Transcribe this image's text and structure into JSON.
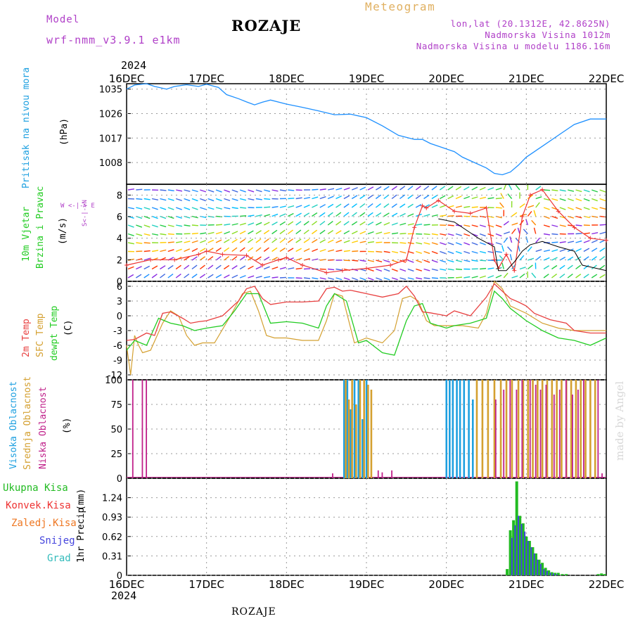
{
  "header": {
    "model_label": "Model",
    "model_name": "wrf-nmm_v3.9.1 e1km",
    "station": "ROZAJE",
    "product": "Meteogram",
    "coords": "lon,lat (20.1312E, 42.8625N)",
    "elevation": "Nadmorska Visina 1012m",
    "model_elevation": "Nadmorska Visina u modelu 1186.16m",
    "footer_station": "ROZAJE",
    "credit": "made by Angel",
    "year": "2024"
  },
  "colors": {
    "pressure": "#1e90ff",
    "t2m": "#e84040",
    "sfc": "#d4a030",
    "dew": "#22cc22",
    "high_cloud": "#1ea0e0",
    "mid_cloud": "#d4a030",
    "low_cloud": "#c0208a",
    "total_precip": "#22bb22",
    "conv_precip": "#ee3333",
    "frz_precip": "#ee7722",
    "snow": "#4444dd",
    "grad": "#33bbbb",
    "gust_line": "#ee3333",
    "wind_line": "#000000"
  },
  "x_axis": {
    "labels": [
      "16DEC",
      "17DEC",
      "18DEC",
      "19DEC",
      "20DEC",
      "21DEC",
      "22DEC"
    ],
    "days": 6
  },
  "chart_data": [
    {
      "type": "line",
      "id": "pressure",
      "ylabel_main": "Pritisak na nivou mora",
      "unit": "(hPa)",
      "yticks": [
        "1035",
        "1026",
        "1017",
        "1008"
      ],
      "ylim": [
        1000,
        1037
      ],
      "series": [
        {
          "x": [
            0,
            0.1,
            0.25,
            0.35,
            0.5,
            0.6,
            0.75,
            0.9,
            1.0,
            1.15,
            1.25,
            1.4,
            1.5,
            1.6,
            1.7,
            1.8,
            2.0,
            2.2,
            2.4,
            2.6,
            2.8,
            3.0,
            3.2,
            3.4,
            3.6,
            3.7,
            3.8,
            4.0,
            4.1,
            4.2,
            4.35,
            4.5,
            4.6,
            4.7,
            4.8,
            4.9,
            5.0,
            5.2,
            5.4,
            5.6,
            5.8,
            6.0
          ],
          "values": [
            1035,
            1036.5,
            1037,
            1036,
            1035,
            1036,
            1036.6,
            1036,
            1036.8,
            1035.6,
            1033,
            1031.5,
            1030.3,
            1029.2,
            1030.2,
            1031,
            1029.5,
            1028.3,
            1027,
            1025.6,
            1025.8,
            1024.5,
            1021.5,
            1018,
            1016.5,
            1016.5,
            1015,
            1013,
            1012,
            1010,
            1008,
            1006,
            1004,
            1003.5,
            1004.5,
            1007,
            1010,
            1014,
            1018,
            1022,
            1024,
            1024
          ]
        }
      ]
    },
    {
      "type": "scatter",
      "id": "wind",
      "ylabel_main": "10m Vjetar",
      "ylabel_sub": "Brzina i Pravac",
      "unit": "(m/s)",
      "compass": "W <-|-> E",
      "compass_ns": "S<-|->N",
      "yticks": [
        "8",
        "6",
        "4",
        "2",
        "0"
      ],
      "ylim": [
        0,
        9
      ],
      "series": [
        {
          "name": "gust",
          "x": [
            0,
            0.3,
            0.6,
            0.9,
            1.0,
            1.2,
            1.5,
            1.7,
            1.9,
            2.0,
            2.2,
            2.5,
            2.7,
            3.0,
            3.3,
            3.5,
            3.6,
            3.7,
            3.75,
            3.9,
            4.1,
            4.3,
            4.5,
            4.6,
            4.65,
            4.75,
            4.85,
            4.95,
            5.05,
            5.2,
            5.4,
            5.6,
            5.8,
            6.0
          ],
          "values": [
            1.5,
            2,
            2,
            2.5,
            2.8,
            2.5,
            2.4,
            1.5,
            2,
            2.2,
            1.5,
            0.8,
            1,
            1.2,
            1.5,
            2,
            5,
            7,
            6.8,
            7.5,
            6.5,
            6.3,
            6.8,
            2,
            1.2,
            2.5,
            1,
            6,
            8,
            8.5,
            6.5,
            5,
            4,
            3.8
          ]
        },
        {
          "name": "mean",
          "x": [
            3.9,
            4.1,
            4.3,
            4.4,
            4.6,
            4.65,
            4.75,
            4.85,
            4.95,
            5.05,
            5.2,
            5.4,
            5.6,
            5.7,
            6.0
          ],
          "values": [
            5.8,
            5.5,
            4.5,
            4,
            3.2,
            1,
            1,
            1.8,
            2.8,
            3.4,
            3.7,
            3.2,
            2.8,
            1.5,
            1
          ]
        }
      ]
    },
    {
      "type": "line",
      "id": "temperature",
      "ylabel_1": "2m Temp",
      "ylabel_2": "SFC Temp",
      "ylabel_3": "dewpt Temp",
      "unit": "(C)",
      "yticks": [
        "6",
        "3",
        "0",
        "-3",
        "-6",
        "-9",
        "-12"
      ],
      "ylim": [
        -13,
        7
      ],
      "series": [
        {
          "name": "2m Temp",
          "x": [
            0,
            0.1,
            0.25,
            0.35,
            0.45,
            0.55,
            0.7,
            0.8,
            0.9,
            1.0,
            1.2,
            1.4,
            1.5,
            1.6,
            1.7,
            1.8,
            2.0,
            2.2,
            2.4,
            2.5,
            2.6,
            2.7,
            2.8,
            3.0,
            3.2,
            3.4,
            3.5,
            3.6,
            3.7,
            3.8,
            4.0,
            4.1,
            4.3,
            4.5,
            4.6,
            4.7,
            4.8,
            4.9,
            5.0,
            5.1,
            5.3,
            5.5,
            5.6,
            5.8,
            6.0
          ],
          "values": [
            -5,
            -4.8,
            -3.5,
            -4,
            0.5,
            0.8,
            -0.5,
            -1.5,
            -1.2,
            -1,
            0,
            3,
            5.5,
            6,
            3.5,
            2.3,
            2.8,
            2.8,
            3,
            5.5,
            5.8,
            5,
            5.2,
            4.5,
            3.8,
            4.5,
            6,
            4,
            0.8,
            0.6,
            0,
            1,
            0,
            3.8,
            6.5,
            5,
            3.5,
            2.8,
            2,
            0.5,
            -0.8,
            -1.5,
            -3,
            -3.5,
            -3.5
          ]
        },
        {
          "name": "SFC Temp",
          "x": [
            0,
            0.05,
            0.1,
            0.15,
            0.2,
            0.3,
            0.45,
            0.55,
            0.65,
            0.75,
            0.85,
            0.95,
            1.1,
            1.3,
            1.45,
            1.55,
            1.65,
            1.75,
            1.85,
            2.0,
            2.2,
            2.4,
            2.5,
            2.6,
            2.7,
            2.85,
            3.0,
            3.2,
            3.35,
            3.45,
            3.55,
            3.65,
            3.75,
            3.85,
            4.0,
            4.2,
            4.4,
            4.5,
            4.6,
            4.7,
            4.8,
            5.0,
            5.2,
            5.4,
            5.6,
            5.8,
            6.0
          ],
          "values": [
            -6,
            -12,
            -4,
            -6,
            -7.5,
            -7,
            -1.5,
            1,
            0,
            -4,
            -6,
            -5.5,
            -5.5,
            0,
            4.5,
            5,
            1,
            -4,
            -4.5,
            -4.5,
            -5,
            -5,
            -1,
            4.5,
            4,
            -5.5,
            -4.5,
            -5.5,
            -3,
            3.5,
            4,
            3,
            -1,
            -2,
            -2,
            -2,
            -2.5,
            0.5,
            7,
            5.5,
            2,
            0.5,
            -1.5,
            -2.5,
            -3,
            -3,
            -3
          ]
        },
        {
          "name": "dewpt Temp",
          "x": [
            0,
            0.1,
            0.25,
            0.4,
            0.55,
            0.7,
            0.85,
            1.0,
            1.2,
            1.35,
            1.5,
            1.65,
            1.8,
            2.0,
            2.2,
            2.4,
            2.5,
            2.6,
            2.75,
            2.9,
            3.0,
            3.2,
            3.35,
            3.5,
            3.6,
            3.7,
            3.8,
            4.0,
            4.1,
            4.3,
            4.5,
            4.6,
            4.7,
            4.8,
            5.0,
            5.2,
            5.4,
            5.6,
            5.8,
            6.0
          ],
          "values": [
            -7,
            -5,
            -6,
            -0.5,
            -1.5,
            -2,
            -3,
            -2.5,
            -2,
            1,
            4.5,
            4.5,
            -1.5,
            -1.2,
            -1.5,
            -2.5,
            2,
            4.5,
            3,
            -5.5,
            -5,
            -7.5,
            -8,
            -1,
            2,
            2.5,
            -1.5,
            -2.5,
            -2,
            -1.5,
            -0.5,
            5,
            3.5,
            1.5,
            -1,
            -3,
            -4.5,
            -5,
            -6,
            -4.5
          ]
        }
      ]
    },
    {
      "type": "bar",
      "id": "clouds",
      "ylabel_1": "Visoka Oblacnost",
      "ylabel_2": "Srednja Oblacnost",
      "ylabel_3": "Niska Oblacnost",
      "unit": "(%)",
      "yticks": [
        "100",
        "75",
        "50",
        "25",
        "0"
      ],
      "ylim": [
        0,
        100
      ],
      "series": [
        {
          "name": "Visoka Oblacnost",
          "x": [
            2.72,
            2.76,
            2.8,
            2.85,
            2.9,
            2.95,
            3.0,
            4.0,
            4.04,
            4.08,
            4.13,
            4.17,
            4.22,
            4.28,
            4.33
          ],
          "values": [
            100,
            100,
            70,
            100,
            100,
            60,
            100,
            100,
            100,
            100,
            100,
            100,
            100,
            100,
            80
          ]
        },
        {
          "name": "Srednja Oblacnost",
          "x": [
            2.74,
            2.78,
            2.82,
            2.87,
            2.92,
            2.97,
            3.02,
            3.06,
            4.38,
            4.45,
            4.52,
            4.6,
            4.68,
            4.75,
            4.82,
            4.9,
            4.96,
            5.02,
            5.08,
            5.14,
            5.2,
            5.26,
            5.32,
            5.38,
            5.44,
            5.5,
            5.56,
            5.62,
            5.68,
            5.74,
            5.8,
            5.86
          ],
          "values": [
            100,
            80,
            100,
            75,
            100,
            100,
            95,
            90,
            100,
            100,
            100,
            100,
            100,
            100,
            100,
            100,
            100,
            100,
            100,
            100,
            100,
            100,
            100,
            100,
            100,
            100,
            100,
            100,
            100,
            100,
            100,
            100
          ]
        },
        {
          "name": "Niska Oblacnost",
          "x": [
            0.08,
            0.2,
            0.25,
            2.58,
            3.15,
            3.2,
            3.32,
            4.62,
            4.72,
            4.8,
            4.88,
            4.95,
            5.05,
            5.12,
            5.18,
            5.25,
            5.35,
            5.42,
            5.5,
            5.58,
            5.65,
            5.72,
            5.9,
            5.95
          ],
          "values": [
            100,
            100,
            100,
            5,
            8,
            6,
            8,
            80,
            90,
            100,
            90,
            100,
            100,
            95,
            90,
            95,
            85,
            90,
            100,
            85,
            90,
            100,
            100,
            5
          ]
        }
      ]
    },
    {
      "type": "bar",
      "id": "precip",
      "legend": [
        "Ukupna Kisa",
        "Konvek.Kisa",
        "Zaledj.Kisa",
        "Snijeg",
        "Grad"
      ],
      "ylabel_main": "1hr Precip",
      "unit": "(mm)",
      "yticks": [
        "1.24",
        "0.93",
        "0.62",
        "0.31",
        "0"
      ],
      "ylim": [
        0,
        1.55
      ],
      "series": [
        {
          "name": "Ukupna Kisa",
          "x": [
            4.76,
            4.8,
            4.84,
            4.88,
            4.92,
            4.96,
            5.0,
            5.04,
            5.08,
            5.12,
            5.16,
            5.2,
            5.24,
            5.28,
            5.32,
            5.36,
            5.4,
            5.45,
            5.5,
            5.9,
            5.94,
            5.98
          ],
          "values": [
            0.1,
            0.72,
            0.88,
            1.5,
            0.95,
            0.83,
            0.62,
            0.55,
            0.45,
            0.35,
            0.25,
            0.2,
            0.12,
            0.08,
            0.05,
            0.04,
            0.04,
            0.02,
            0.02,
            0.02,
            0.03,
            0.02
          ]
        },
        {
          "name": "Snijeg",
          "x": [
            4.82,
            4.86,
            4.9,
            4.94,
            4.98,
            5.02,
            5.06,
            5.1,
            5.14,
            5.18,
            5.22,
            5.26,
            5.3,
            5.34,
            5.38
          ],
          "values": [
            0.6,
            0.8,
            0.95,
            0.82,
            0.7,
            0.55,
            0.45,
            0.35,
            0.25,
            0.18,
            0.1,
            0.07,
            0.04,
            0.03,
            0.02
          ]
        }
      ]
    }
  ]
}
